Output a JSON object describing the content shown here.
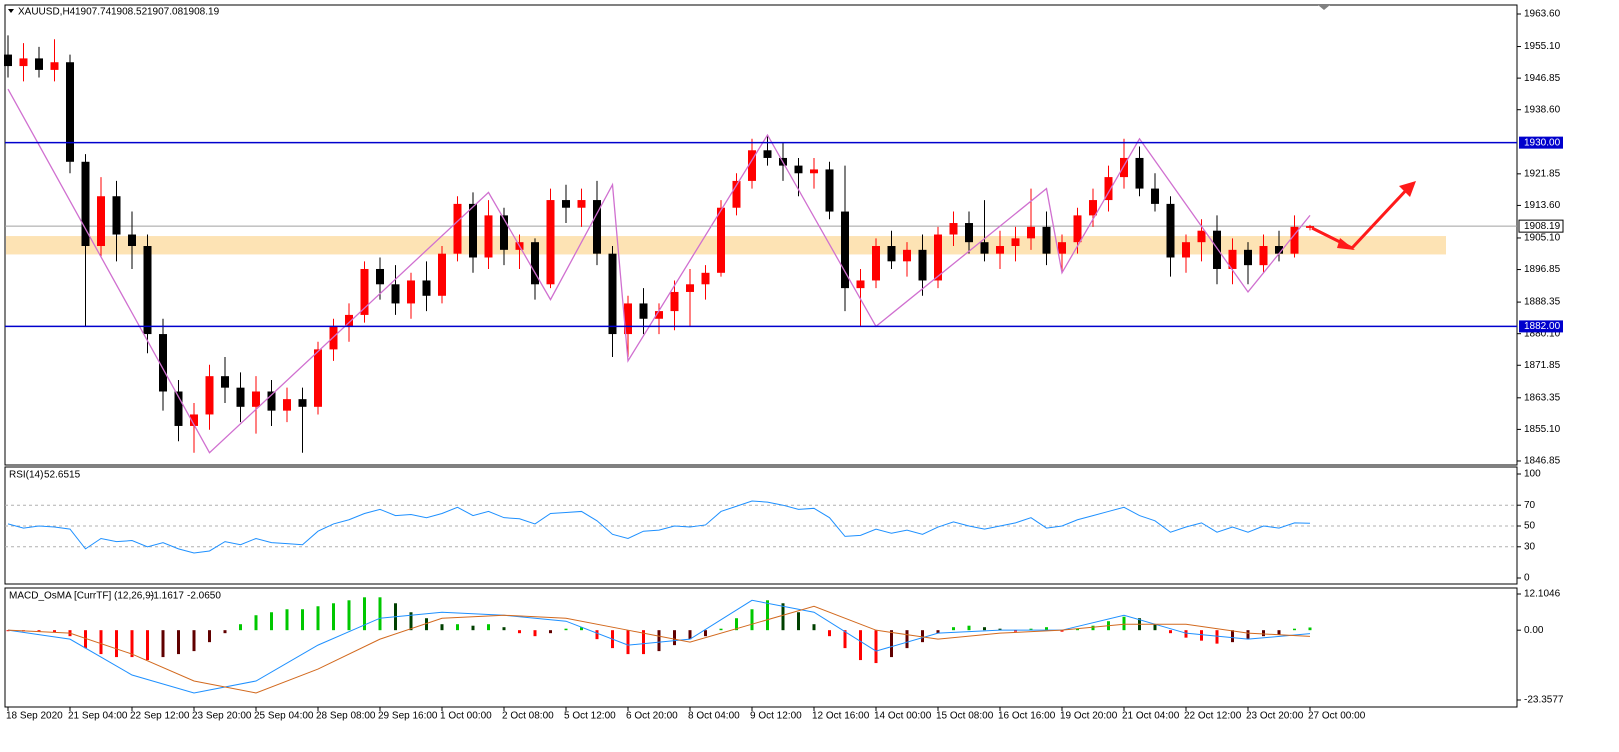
{
  "chart_data": [
    {
      "type": "candlestick",
      "title": "XAUUSD,H4",
      "categories": [
        "18 Sep 2020",
        null,
        null,
        null,
        "21 Sep 04:00",
        null,
        null,
        null,
        "22 Sep 12:00",
        null,
        null,
        null,
        "23 Sep 20:00",
        null,
        null,
        null,
        "25 Sep 04:00",
        null,
        null,
        null,
        "28 Sep 08:00",
        null,
        null,
        null,
        "29 Sep 16:00",
        null,
        null,
        null,
        "1 Oct 00:00",
        null,
        null,
        null,
        "2 Oct 08:00",
        null,
        null,
        null,
        "5 Oct 12:00",
        null,
        null,
        null,
        "6 Oct 20:00",
        null,
        null,
        null,
        "8 Oct 04:00",
        null,
        null,
        null,
        "9 Oct 12:00",
        null,
        null,
        null,
        "12 Oct 16:00",
        null,
        null,
        null,
        "14 Oct 00:00",
        null,
        null,
        null,
        "15 Oct 08:00",
        null,
        null,
        null,
        "16 Oct 16:00",
        null,
        null,
        null,
        "19 Oct 20:00",
        null,
        null,
        null,
        "21 Oct 04:00",
        null,
        null,
        null,
        "22 Oct 12:00",
        null,
        null,
        null,
        "23 Oct 20:00",
        null,
        null,
        null,
        "27 Oct 00:00"
      ],
      "open": [
        1953,
        1950,
        1952,
        1949,
        1951,
        1925,
        1903,
        1916,
        1906,
        1903,
        1880,
        1865,
        1856,
        1859,
        1869,
        1866,
        1861,
        1865,
        1860,
        1863,
        1861,
        1876,
        1882,
        1885,
        1897,
        1893,
        1888,
        1894,
        1890,
        1901,
        1914,
        1900,
        1911,
        1902,
        1904,
        1893,
        1915,
        1913,
        1915,
        1901,
        1880,
        1888,
        1884,
        1886,
        1891,
        1893,
        1896,
        1913,
        1920,
        1928,
        1926,
        1924,
        1922,
        1923,
        1912,
        1892,
        1894,
        1903,
        1899,
        1902,
        1894,
        1906,
        1909,
        1904,
        1901,
        1903,
        1905,
        1908,
        1901,
        1904,
        1911,
        1915,
        1921,
        1926,
        1918,
        1914,
        1900,
        1904,
        1907,
        1897,
        1902,
        1898,
        1903,
        1901,
        1907.74
      ],
      "high": [
        1958,
        1956,
        1955,
        1957,
        1953,
        1927,
        1921,
        1920,
        1912,
        1906,
        1884,
        1868,
        1862,
        1872,
        1874,
        1870,
        1869,
        1868,
        1866,
        1866,
        1878,
        1884,
        1888,
        1899,
        1900,
        1898,
        1896,
        1899,
        1903,
        1916,
        1917,
        1915,
        1913,
        1906,
        1905,
        1918,
        1919,
        1918,
        1920,
        1903,
        1890,
        1892,
        1888,
        1894,
        1897,
        1898,
        1915,
        1922,
        1931,
        1932,
        1930,
        1926,
        1926,
        1925,
        1924,
        1897,
        1905,
        1907,
        1904,
        1906,
        1908,
        1912,
        1912,
        1915,
        1907,
        1908,
        1918,
        1912,
        1906,
        1913,
        1918,
        1924,
        1931,
        1929,
        1922,
        1916,
        1906,
        1910,
        1911,
        1905,
        1904,
        1906,
        1907,
        1911,
        1908.52
      ],
      "low": [
        1947,
        1946,
        1947,
        1946,
        1922,
        1882,
        1900,
        1899,
        1897,
        1875,
        1860,
        1852,
        1849,
        1855,
        1862,
        1857,
        1854,
        1856,
        1857,
        1849,
        1859,
        1873,
        1878,
        1883,
        1889,
        1885,
        1884,
        1886,
        1888,
        1899,
        1896,
        1897,
        1898,
        1897,
        1889,
        1892,
        1909,
        1908,
        1898,
        1874,
        1874,
        1880,
        1880,
        1881,
        1882,
        1889,
        1895,
        1911,
        1918,
        1924,
        1920,
        1916,
        1918,
        1910,
        1886,
        1882,
        1892,
        1897,
        1895,
        1890,
        1892,
        1903,
        1901,
        1899,
        1897,
        1899,
        1902,
        1898,
        1896,
        1901,
        1908,
        1912,
        1918,
        1916,
        1912,
        1895,
        1896,
        1899,
        1893,
        1893,
        1893,
        1896,
        1899,
        1900,
        1907.08
      ],
      "close": [
        1950,
        1952,
        1949,
        1951,
        1925,
        1903,
        1916,
        1906,
        1903,
        1880,
        1865,
        1856,
        1859,
        1869,
        1866,
        1861,
        1865,
        1860,
        1863,
        1861,
        1876,
        1882,
        1885,
        1897,
        1893,
        1888,
        1894,
        1890,
        1901,
        1914,
        1900,
        1911,
        1902,
        1904,
        1893,
        1915,
        1913,
        1915,
        1901,
        1880,
        1888,
        1884,
        1886,
        1891,
        1893,
        1896,
        1913,
        1920,
        1928,
        1926,
        1924,
        1922,
        1923,
        1912,
        1892,
        1894,
        1903,
        1899,
        1902,
        1894,
        1906,
        1909,
        1904,
        1901,
        1903,
        1905,
        1908,
        1901,
        1904,
        1911,
        1915,
        1921,
        1926,
        1918,
        1914,
        1900,
        1904,
        1907,
        1897,
        1902,
        1898,
        1903,
        1901,
        1908,
        1908.19
      ],
      "up_color": "#ff0000",
      "down_color": "#000000",
      "zigzag": {
        "color": "#d070d0",
        "x": [
          0,
          13,
          31,
          35,
          39,
          40,
          49,
          56,
          67,
          68,
          73,
          80,
          84
        ],
        "values": [
          1944,
          1849,
          1917,
          1889,
          1919,
          1873,
          1932,
          1882,
          1918,
          1896,
          1931,
          1891,
          1911
        ]
      },
      "levels": [
        {
          "value": 1930,
          "label": "1930.00",
          "color": "#0000cd"
        },
        {
          "value": 1882,
          "label": "1882.00",
          "color": "#0000cd"
        }
      ],
      "current_price": {
        "value": 1908.19,
        "label": "1908.19",
        "color": "#a0a0a0"
      },
      "zone": [
        1900.8,
        1905.6
      ],
      "zone_color": "#fde3b4",
      "ylim": [
        1845.8,
        1965.95
      ],
      "yticks": [
        {
          "value": 1963.6,
          "label": "1963.60"
        },
        {
          "value": 1955.1,
          "label": "1955.10"
        },
        {
          "value": 1946.85,
          "label": "1946.85"
        },
        {
          "value": 1938.6,
          "label": "1938.60"
        },
        {
          "value": 1921.85,
          "label": "1921.85"
        },
        {
          "value": 1913.6,
          "label": "1913.60"
        },
        {
          "value": 1905.1,
          "label": "1905.10"
        },
        {
          "value": 1896.85,
          "label": "1896.85"
        },
        {
          "value": 1888.35,
          "label": "1888.35"
        },
        {
          "value": 1880.1,
          "label": "1880.10"
        },
        {
          "value": 1871.85,
          "label": "1871.85"
        },
        {
          "value": 1863.35,
          "label": "1863.35"
        },
        {
          "value": 1855.1,
          "label": "1855.10"
        },
        {
          "value": 1846.85,
          "label": "1846.85"
        }
      ]
    },
    {
      "type": "line",
      "title": "RSI(14)",
      "series": [
        {
          "name": "RSI(14)",
          "color": "#1e90ff",
          "values": [
            52,
            48,
            50,
            49,
            47,
            28,
            38,
            35,
            36,
            30,
            34,
            28,
            24,
            26,
            35,
            32,
            38,
            34,
            33,
            32,
            45,
            52,
            56,
            62,
            66,
            60,
            61,
            58,
            62,
            68,
            60,
            64,
            58,
            57,
            52,
            62,
            63,
            64,
            55,
            42,
            38,
            45,
            46,
            50,
            49,
            51,
            64,
            69,
            74,
            73,
            70,
            66,
            67,
            58,
            40,
            41,
            47,
            43,
            46,
            42,
            49,
            54,
            50,
            47,
            50,
            53,
            58,
            48,
            50,
            56,
            60,
            64,
            68,
            60,
            55,
            44,
            49,
            53,
            44,
            49,
            44,
            50,
            48,
            53,
            52.6515
          ]
        }
      ],
      "ylim": [
        0,
        100
      ],
      "yticks": [
        100,
        70,
        50,
        30,
        0
      ],
      "levels": [
        70,
        50,
        30
      ]
    },
    {
      "type": "histogram",
      "title": "MACD_OsMA [CurrTF] (12,26,9)",
      "values": [
        -0.3,
        -0.4,
        -0.5,
        -0.6,
        -2,
        -6,
        -8,
        -9,
        -9,
        -10,
        -9,
        -8,
        -7,
        -4,
        -1,
        2,
        5,
        6,
        7,
        7,
        8,
        9,
        10,
        11,
        11,
        9,
        6,
        4,
        2,
        2,
        1.5,
        2,
        1,
        -1,
        -2,
        -1,
        0.5,
        1,
        -3,
        -6,
        -8,
        -8,
        -7,
        -5,
        -3,
        -2,
        0.5,
        4,
        7,
        10,
        9,
        6,
        2,
        -2,
        -6,
        -10,
        -11,
        -9,
        -6,
        -4,
        -1,
        1,
        1.5,
        1,
        0.5,
        -0.5,
        0.5,
        1,
        -0.5,
        0.5,
        1.5,
        3,
        4.5,
        4,
        2,
        -1,
        -2.5,
        -3.5,
        -4.5,
        -4,
        -3,
        -2,
        -1.5,
        0.5,
        0.9
      ],
      "colors": {
        "pos_up": "#00c800",
        "pos_down": "#004000",
        "neg_down": "#ff0000",
        "neg_up": "#600000"
      },
      "series": [
        {
          "name": "MACD",
          "color": "#1e90ff",
          "x": [
            0,
            4,
            8,
            12,
            16,
            20,
            24,
            28,
            32,
            36,
            40,
            44,
            48,
            52,
            56,
            60,
            64,
            68,
            72,
            76,
            80,
            84
          ],
          "values": [
            0,
            -3,
            -15,
            -21,
            -17,
            -5,
            4,
            6,
            5,
            3,
            -5,
            -3,
            10,
            6,
            -7,
            -1,
            0,
            0,
            5,
            -1,
            -3,
            -1.1617
          ]
        },
        {
          "name": "Signal",
          "color": "#d2691e",
          "x": [
            0,
            4,
            8,
            12,
            16,
            20,
            24,
            28,
            32,
            36,
            40,
            44,
            48,
            52,
            56,
            60,
            64,
            68,
            72,
            76,
            80,
            84
          ],
          "values": [
            0,
            -1,
            -8,
            -17,
            -21,
            -13,
            -3,
            4,
            5,
            4,
            0,
            -4,
            2,
            8,
            0,
            -3,
            -1,
            0,
            2,
            2,
            -1,
            -2.065
          ],
          "last_label": "-2.0650"
        }
      ],
      "ylim": [
        -23.3577,
        12.1046
      ],
      "yticks": [
        12.1046,
        {
          "value": 0,
          "label": "0.00"
        },
        -23.3577
      ]
    }
  ]
}
